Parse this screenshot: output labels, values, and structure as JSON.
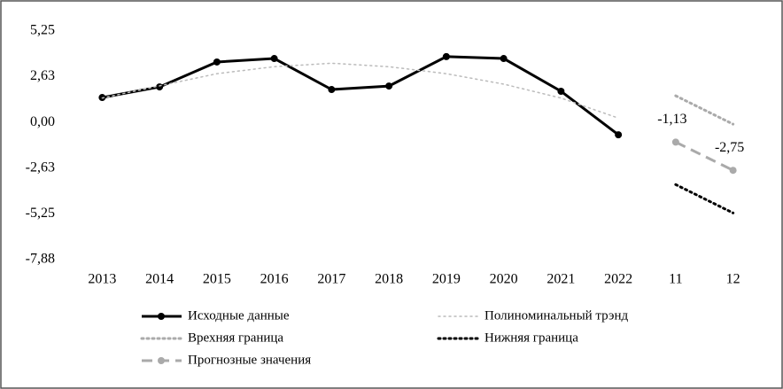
{
  "chart_data": {
    "type": "line",
    "categories": [
      "2013",
      "2014",
      "2015",
      "2016",
      "2017",
      "2018",
      "2019",
      "2020",
      "2021",
      "2022",
      "11",
      "12"
    ],
    "ylim": [
      -7.88,
      5.25
    ],
    "yticks": [
      {
        "value": 5.25,
        "label": "5,25"
      },
      {
        "value": 2.63,
        "label": "2,63"
      },
      {
        "value": 0,
        "label": "0,00"
      },
      {
        "value": -2.63,
        "label": "-2,63"
      },
      {
        "value": -5.25,
        "label": "-5,25"
      },
      {
        "value": -7.88,
        "label": "-7,88"
      }
    ],
    "grid": false,
    "series": [
      {
        "name": "Исходные данные",
        "color": "#000000",
        "dash": "solid",
        "width": 3,
        "marker": true,
        "values": [
          1.43,
          2.04,
          3.47,
          3.67,
          1.89,
          2.09,
          3.78,
          3.67,
          1.79,
          -0.71,
          null,
          null
        ]
      },
      {
        "name": "Полиноминальный трэнд",
        "color": "#bbbbbb",
        "dash": "dotted",
        "width": 1.5,
        "marker": false,
        "values": [
          1.4,
          2.1,
          2.8,
          3.2,
          3.4,
          3.2,
          2.8,
          2.2,
          1.4,
          0.25,
          null,
          null
        ]
      },
      {
        "name": "Врехняя граница",
        "color": "#aaaaaa",
        "dash": "dotted",
        "width": 3,
        "marker": false,
        "values": [
          null,
          null,
          null,
          null,
          null,
          null,
          null,
          null,
          null,
          null,
          1.53,
          -0.1
        ]
      },
      {
        "name": "Нижняя граница",
        "color": "#000000",
        "dash": "dotted",
        "width": 3,
        "marker": false,
        "values": [
          null,
          null,
          null,
          null,
          null,
          null,
          null,
          null,
          null,
          null,
          -3.57,
          -5.2
        ]
      },
      {
        "name": "Прогнозные значения",
        "color": "#aaaaaa",
        "dash": "dashed",
        "width": 3,
        "marker": true,
        "values": [
          null,
          null,
          null,
          null,
          null,
          null,
          null,
          null,
          null,
          null,
          -1.13,
          -2.75
        ],
        "value_labels": [
          null,
          null,
          null,
          null,
          null,
          null,
          null,
          null,
          null,
          null,
          "-1,13",
          "-2,75"
        ]
      }
    ]
  }
}
